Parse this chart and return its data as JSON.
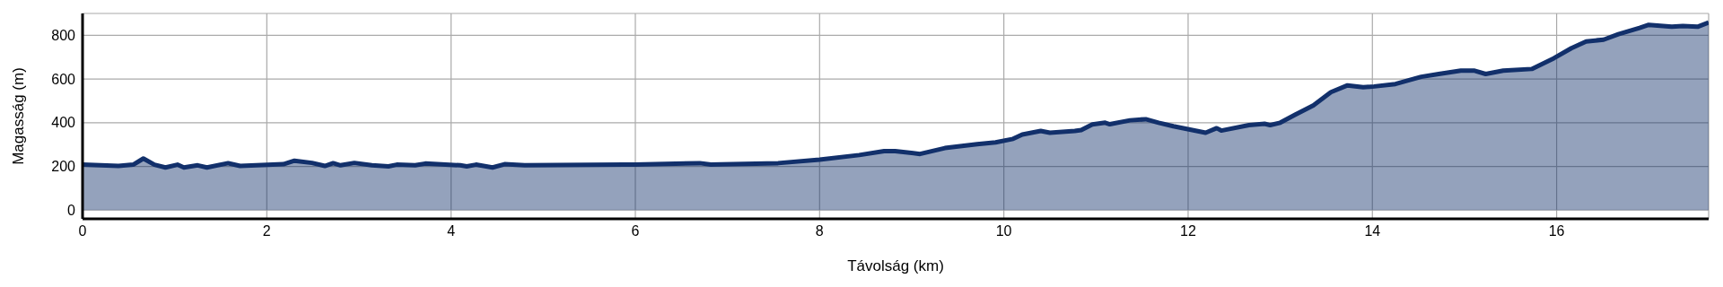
{
  "chart_data": {
    "type": "area",
    "xlabel": "Távolság (km)",
    "ylabel": "Magasság (m)",
    "xlim": [
      0,
      17.65
    ],
    "xticks": [
      0,
      2,
      4,
      6,
      8,
      10,
      12,
      14,
      16
    ],
    "ylim": [
      -40,
      900
    ],
    "yticks": [
      0,
      200,
      400,
      600,
      800
    ],
    "grid": true,
    "x": [
      0,
      0.39,
      0.55,
      0.66,
      0.78,
      0.9,
      1.03,
      1.1,
      1.25,
      1.35,
      1.58,
      1.71,
      2.18,
      2.3,
      2.49,
      2.63,
      2.72,
      2.8,
      2.95,
      3.14,
      3.32,
      3.41,
      3.61,
      3.72,
      4.1,
      4.17,
      4.27,
      4.45,
      4.58,
      4.8,
      5.88,
      6.0,
      6.7,
      6.82,
      7.55,
      8.0,
      8.43,
      8.7,
      8.82,
      9.09,
      9.36,
      9.71,
      9.91,
      10.1,
      10.2,
      10.4,
      10.5,
      10.77,
      10.84,
      10.96,
      11.1,
      11.15,
      11.37,
      11.54,
      11.68,
      11.84,
      12.19,
      12.31,
      12.36,
      12.66,
      12.83,
      12.89,
      13.0,
      13.16,
      13.36,
      13.55,
      13.73,
      13.9,
      14.02,
      14.25,
      14.53,
      14.72,
      14.96,
      15.11,
      15.23,
      15.42,
      15.73,
      15.97,
      16.16,
      16.32,
      16.51,
      16.67,
      16.9,
      17.0,
      17.25,
      17.37,
      17.53,
      17.65
    ],
    "series": [
      {
        "color": "#12306b",
        "values": [
          208,
          202,
          208,
          236,
          208,
          195,
          208,
          195,
          205,
          195,
          215,
          202,
          210,
          226,
          216,
          202,
          215,
          205,
          216,
          205,
          200,
          208,
          205,
          213,
          205,
          200,
          208,
          195,
          210,
          205,
          208,
          208,
          215,
          208,
          215,
          231,
          252,
          270,
          270,
          257,
          284,
          302,
          310,
          326,
          346,
          362,
          354,
          362,
          366,
          392,
          400,
          393,
          411,
          416,
          400,
          384,
          354,
          375,
          364,
          389,
          395,
          389,
          400,
          436,
          479,
          540,
          571,
          562,
          566,
          577,
          610,
          623,
          638,
          638,
          623,
          638,
          646,
          695,
          741,
          772,
          780,
          805,
          834,
          848,
          839,
          843,
          839,
          859
        ]
      }
    ]
  }
}
